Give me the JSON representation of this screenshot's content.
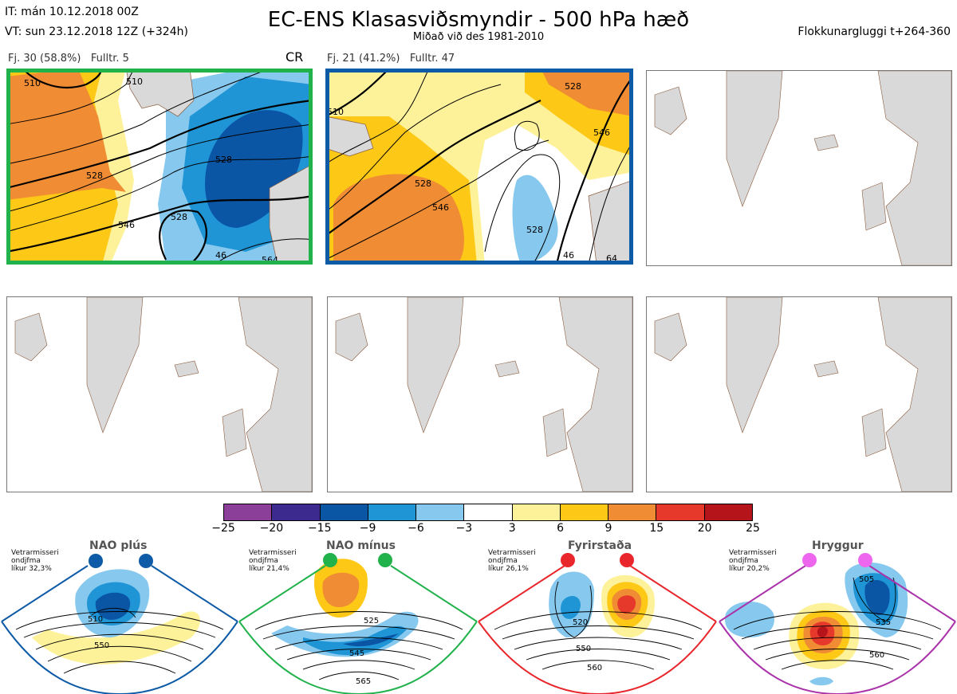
{
  "header": {
    "it_line": "IT: mán 10.12.2018 00Z",
    "vt_line": "VT: sun 23.12.2018 12Z  (+324h)",
    "title": "EC-ENS Klasasviðsmyndir - 500 hPa hæð",
    "subtitle": "Miðað við des 1981-2010",
    "window": "Flokkunargluggi t+264-360"
  },
  "clusters": [
    {
      "label_left": "Fj. 30 (58.8%)",
      "label_right": "Fulltr. 5",
      "tag": "CR",
      "border_color": "#22b24c",
      "contour_labels": [
        "510",
        "510",
        "528",
        "546",
        "528",
        "528",
        "46",
        "564"
      ]
    },
    {
      "label_left": "Fj. 21 (41.2%)",
      "label_right": "Fulltr. 47",
      "tag": "",
      "border_color": "#0d5aa7",
      "contour_labels": [
        "510",
        "528",
        "528",
        "546",
        "528",
        "546",
        "46",
        "64"
      ]
    }
  ],
  "colorbar": {
    "ticks": [
      "−25",
      "−20",
      "−15",
      "−9",
      "−6",
      "−3",
      "3",
      "6",
      "9",
      "15",
      "20",
      "25"
    ],
    "colors": [
      "#8b3f99",
      "#3d2a8f",
      "#0b55a5",
      "#1f95d6",
      "#86c8ee",
      "#ffffff",
      "#fdf29a",
      "#fdc916",
      "#f08c33",
      "#e6392b",
      "#b4141a"
    ]
  },
  "regimes": [
    {
      "name": "NAO plús",
      "season": "Vetrarmisseri",
      "period": "ondjfma",
      "prob": "líkur 32,3%",
      "color": "#0d5aa7",
      "contour_labels": [
        "510",
        "550"
      ]
    },
    {
      "name": "NAO mínus",
      "season": "Vetrarmisseri",
      "period": "ondjfma",
      "prob": "líkur 21,4%",
      "color": "#22b24c",
      "contour_labels": [
        "525",
        "545",
        "565"
      ]
    },
    {
      "name": "Fyrirstaða",
      "season": "Vetrarmisseri",
      "period": "ondjfma",
      "prob": "líkur 26,1%",
      "color": "#e8262b",
      "contour_labels": [
        "520",
        "550",
        "560"
      ]
    },
    {
      "name": "Hryggur",
      "season": "Vetrarmisseri",
      "period": "ondjfma",
      "prob": "líkur 20,2%",
      "color": "#ee66ee",
      "contour_labels": [
        "505",
        "535",
        "560"
      ]
    }
  ]
}
